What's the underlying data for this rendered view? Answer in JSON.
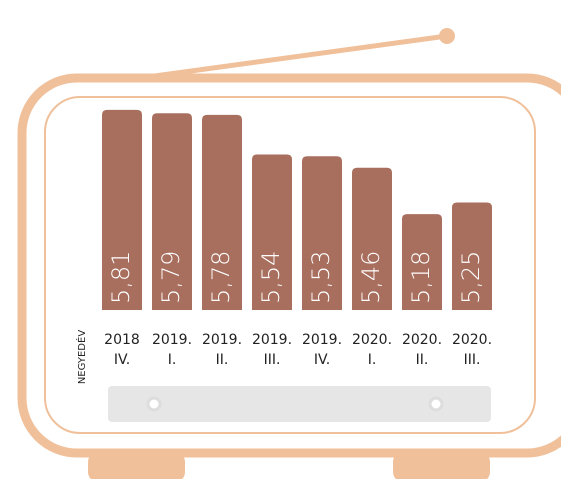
{
  "chart_data": {
    "type": "bar",
    "categories": [
      [
        "2018",
        "IV."
      ],
      [
        "2019.",
        "I."
      ],
      [
        "2019.",
        "II."
      ],
      [
        "2019.",
        "III."
      ],
      [
        "2019.",
        "IV."
      ],
      [
        "2020.",
        "I."
      ],
      [
        "2020.",
        "II."
      ],
      [
        "2020.",
        "III."
      ]
    ],
    "values": [
      5.81,
      5.79,
      5.78,
      5.54,
      5.53,
      5.46,
      5.18,
      5.25
    ],
    "value_labels": [
      "5,81",
      "5,79",
      "5,78",
      "5,54",
      "5,53",
      "5,46",
      "5,18",
      "5,25"
    ],
    "x_label": "NEGYEDÉV",
    "color": "#a86e5e",
    "ylim": [
      4.6,
      5.9
    ]
  }
}
